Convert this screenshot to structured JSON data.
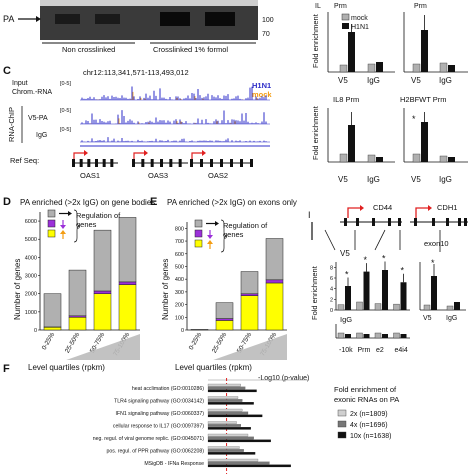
{
  "panels": {
    "c": "C",
    "d": "D",
    "e": "E",
    "f": "F",
    "i": "I"
  },
  "blot": {
    "pa_label": "PA",
    "mw": [
      "100",
      "70"
    ],
    "groups": [
      "Non crosslinked",
      "Crosslinked 1% formol"
    ]
  },
  "top_right": {
    "titles": [
      "IL",
      "Prm",
      "Prm"
    ],
    "ylabel": "Fold enrichment",
    "legend": [
      "mock",
      "H1N1"
    ],
    "xticks": [
      "V5",
      "IgG",
      "V5",
      "IgG"
    ]
  },
  "tracks": {
    "coords": "chr12:113,341,571-113,493,012",
    "legend": [
      "H1N1",
      "mock"
    ],
    "input_label": [
      "Input",
      "Chrom.-RNA"
    ],
    "rna_chip": "RNA-ChIP",
    "v5pa": "V5-PA",
    "igg": "IgG",
    "scale": [
      "[0-5]",
      "[0-5]",
      "[0-5]"
    ],
    "genes": [
      "OAS1",
      "OAS3",
      "OAS2"
    ],
    "refseq": "Ref Seq:"
  },
  "mid_right": {
    "panels": [
      {
        "title": "IL8 Prm",
        "xticks": [
          "V5",
          "IgG"
        ]
      },
      {
        "title": "H2BFWT Prm",
        "xticks": [
          "V5",
          "IgG"
        ],
        "star": "*"
      }
    ],
    "ylabel": "Fold enrichment"
  },
  "chart_data": [
    {
      "type": "bar",
      "title": "PA enriched (>2x IgG) on gene bodies",
      "xlabel": "Level quartiles (rpkm)",
      "ylabel": "Number of genes",
      "categories": [
        "0-25%",
        "25-50%",
        "50-75%",
        "75-100%"
      ],
      "yticks": [
        "0",
        "1000",
        "2000",
        "3000",
        "4000",
        "5000",
        "6000"
      ],
      "ylim": [
        0,
        6500
      ],
      "series": [
        {
          "name": "up",
          "values": [
            150,
            700,
            2000,
            2500
          ]
        },
        {
          "name": "down",
          "values": [
            20,
            80,
            150,
            150
          ]
        },
        {
          "name": "unchanged",
          "values": [
            1830,
            2520,
            3350,
            3550
          ]
        }
      ],
      "legend_title": "Regulation of genes"
    },
    {
      "type": "bar",
      "title": "PA enriched (>2x IgG) on exons only",
      "xlabel": "Level quartiles (rpkm)",
      "ylabel": "Number of genes",
      "categories": [
        "0-25%",
        "25-50%",
        "50-75%",
        "75-100%"
      ],
      "yticks": [
        "0",
        "100",
        "200",
        "300",
        "400",
        "500",
        "600",
        "700",
        "800"
      ],
      "ylim": [
        0,
        850
      ],
      "series": [
        {
          "name": "up",
          "values": [
            0,
            75,
            270,
            370
          ]
        },
        {
          "name": "down",
          "values": [
            0,
            15,
            15,
            25
          ]
        },
        {
          "name": "unchanged",
          "values": [
            5,
            125,
            175,
            325
          ]
        }
      ],
      "legend_title": "Regulation of genes"
    },
    {
      "type": "bar",
      "title": "V5",
      "ylabel": "Fold enrichment",
      "categories": [
        "-10k",
        "Prm",
        "e2",
        "e4i4"
      ],
      "yticks": [
        "0",
        "2",
        "4",
        "6",
        "8"
      ],
      "ylim": [
        0,
        9
      ],
      "series": [
        {
          "name": "mock",
          "values": [
            1.0,
            1.5,
            1.2,
            1.1
          ]
        },
        {
          "name": "H1N1",
          "values": [
            4.5,
            7.2,
            7.5,
            5.2
          ]
        }
      ],
      "igg_label": "IgG",
      "genes": [
        "CD44",
        "CDH1"
      ],
      "exon": "exon10"
    },
    {
      "type": "bar",
      "title": "-Log10 (p-value)",
      "categories": [
        "heat acclimation (GO:0010286)",
        "TLR4 signaling pathway (GO:0034142)",
        "IFN1 signaling pathway (GO:0060337)",
        "cellular response to IL17 (GO:0097397)",
        "neg. regul. of viral genome replic. (GO:0045071)",
        "pos. regul. of PPR pathway (GO:0062208)",
        "MSigDB - IFNa Response"
      ],
      "series": [
        {
          "name": "2x (n=1809)",
          "values": [
            2.3,
            2.1,
            2.4,
            2.0,
            2.8,
            2.2,
            3.5
          ]
        },
        {
          "name": "4x (n=1696)",
          "values": [
            2.6,
            2.4,
            2.8,
            2.3,
            3.2,
            2.5,
            4.3
          ]
        },
        {
          "name": "10x (n=1638)",
          "values": [
            3.4,
            3.2,
            3.8,
            3.0,
            4.4,
            3.3,
            5.8
          ]
        }
      ],
      "legend_title": [
        "Fold enrichment of",
        "exonic RNAs on PA"
      ]
    }
  ],
  "colors": {
    "gray": "#b0b0b0",
    "purple": "#9b30d9",
    "yellow": "#ffff00",
    "orange": "#f39c12",
    "red": "#e02020",
    "blue": "#2c2cc8",
    "black": "#111111",
    "dash": "#e02020"
  }
}
